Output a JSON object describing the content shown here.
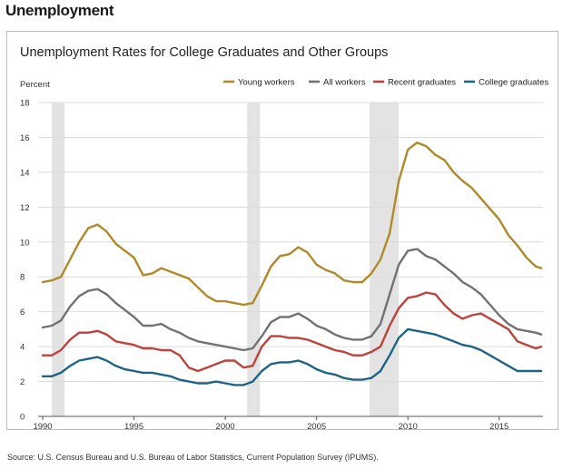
{
  "page": {
    "heading": "Unemployment",
    "source": "Source: U.S. Census Bureau and U.S. Bureau of Labor Statistics, Current Population Survey (IPUMS)."
  },
  "chart_data": {
    "type": "line",
    "title": "Unemployment Rates for College Graduates and Other Groups",
    "ylabel": "Percent",
    "xlabel": "",
    "xlim": [
      1989.75,
      2017.4
    ],
    "ylim": [
      0,
      18
    ],
    "x_ticks": [
      1990,
      1995,
      2000,
      2005,
      2010,
      2015
    ],
    "y_ticks": [
      0,
      2,
      4,
      6,
      8,
      10,
      12,
      14,
      16,
      18
    ],
    "grid": true,
    "legend": "top-right",
    "recessions": [
      [
        1990.5,
        1991.2
      ],
      [
        2001.2,
        2001.9
      ],
      [
        2007.9,
        2009.5
      ]
    ],
    "series": [
      {
        "name": "Young workers",
        "color": "#b08a28",
        "points": [
          [
            1990.0,
            7.7
          ],
          [
            1990.5,
            7.8
          ],
          [
            1991.0,
            8.0
          ],
          [
            1991.5,
            9.0
          ],
          [
            1992.0,
            10.0
          ],
          [
            1992.5,
            10.8
          ],
          [
            1993.0,
            11.0
          ],
          [
            1993.5,
            10.6
          ],
          [
            1994.0,
            9.9
          ],
          [
            1994.5,
            9.5
          ],
          [
            1995.0,
            9.1
          ],
          [
            1995.5,
            8.1
          ],
          [
            1996.0,
            8.2
          ],
          [
            1996.5,
            8.5
          ],
          [
            1997.0,
            8.3
          ],
          [
            1997.5,
            8.1
          ],
          [
            1998.0,
            7.9
          ],
          [
            1998.5,
            7.4
          ],
          [
            1999.0,
            6.9
          ],
          [
            1999.5,
            6.6
          ],
          [
            2000.0,
            6.6
          ],
          [
            2000.5,
            6.5
          ],
          [
            2001.0,
            6.4
          ],
          [
            2001.5,
            6.5
          ],
          [
            2002.0,
            7.5
          ],
          [
            2002.5,
            8.6
          ],
          [
            2003.0,
            9.2
          ],
          [
            2003.5,
            9.3
          ],
          [
            2004.0,
            9.7
          ],
          [
            2004.5,
            9.4
          ],
          [
            2005.0,
            8.7
          ],
          [
            2005.5,
            8.4
          ],
          [
            2006.0,
            8.2
          ],
          [
            2006.5,
            7.8
          ],
          [
            2007.0,
            7.7
          ],
          [
            2007.5,
            7.7
          ],
          [
            2008.0,
            8.2
          ],
          [
            2008.5,
            9.0
          ],
          [
            2009.0,
            10.5
          ],
          [
            2009.5,
            13.5
          ],
          [
            2010.0,
            15.3
          ],
          [
            2010.5,
            15.7
          ],
          [
            2011.0,
            15.5
          ],
          [
            2011.5,
            15.0
          ],
          [
            2012.0,
            14.7
          ],
          [
            2012.5,
            14.0
          ],
          [
            2013.0,
            13.5
          ],
          [
            2013.5,
            13.1
          ],
          [
            2014.0,
            12.5
          ],
          [
            2014.5,
            11.9
          ],
          [
            2015.0,
            11.3
          ],
          [
            2015.5,
            10.4
          ],
          [
            2016.0,
            9.8
          ],
          [
            2016.5,
            9.1
          ],
          [
            2017.0,
            8.6
          ],
          [
            2017.3,
            8.5
          ]
        ]
      },
      {
        "name": "All workers",
        "color": "#707275",
        "points": [
          [
            1990.0,
            5.1
          ],
          [
            1990.5,
            5.2
          ],
          [
            1991.0,
            5.5
          ],
          [
            1991.5,
            6.3
          ],
          [
            1992.0,
            6.9
          ],
          [
            1992.5,
            7.2
          ],
          [
            1993.0,
            7.3
          ],
          [
            1993.5,
            7.0
          ],
          [
            1994.0,
            6.5
          ],
          [
            1994.5,
            6.1
          ],
          [
            1995.0,
            5.7
          ],
          [
            1995.5,
            5.2
          ],
          [
            1996.0,
            5.2
          ],
          [
            1996.5,
            5.3
          ],
          [
            1997.0,
            5.0
          ],
          [
            1997.5,
            4.8
          ],
          [
            1998.0,
            4.5
          ],
          [
            1998.5,
            4.3
          ],
          [
            1999.0,
            4.2
          ],
          [
            1999.5,
            4.1
          ],
          [
            2000.0,
            4.0
          ],
          [
            2000.5,
            3.9
          ],
          [
            2001.0,
            3.8
          ],
          [
            2001.5,
            3.9
          ],
          [
            2002.0,
            4.6
          ],
          [
            2002.5,
            5.4
          ],
          [
            2003.0,
            5.7
          ],
          [
            2003.5,
            5.7
          ],
          [
            2004.0,
            5.9
          ],
          [
            2004.5,
            5.6
          ],
          [
            2005.0,
            5.2
          ],
          [
            2005.5,
            5.0
          ],
          [
            2006.0,
            4.7
          ],
          [
            2006.5,
            4.5
          ],
          [
            2007.0,
            4.4
          ],
          [
            2007.5,
            4.4
          ],
          [
            2008.0,
            4.6
          ],
          [
            2008.5,
            5.3
          ],
          [
            2009.0,
            7.0
          ],
          [
            2009.5,
            8.7
          ],
          [
            2010.0,
            9.5
          ],
          [
            2010.5,
            9.6
          ],
          [
            2011.0,
            9.2
          ],
          [
            2011.5,
            9.0
          ],
          [
            2012.0,
            8.6
          ],
          [
            2012.5,
            8.2
          ],
          [
            2013.0,
            7.7
          ],
          [
            2013.5,
            7.4
          ],
          [
            2014.0,
            7.0
          ],
          [
            2014.5,
            6.4
          ],
          [
            2015.0,
            5.8
          ],
          [
            2015.5,
            5.3
          ],
          [
            2016.0,
            5.0
          ],
          [
            2016.5,
            4.9
          ],
          [
            2017.0,
            4.8
          ],
          [
            2017.3,
            4.7
          ]
        ]
      },
      {
        "name": "Recent graduates",
        "color": "#c0423c",
        "points": [
          [
            1990.0,
            3.5
          ],
          [
            1990.5,
            3.5
          ],
          [
            1991.0,
            3.8
          ],
          [
            1991.5,
            4.4
          ],
          [
            1992.0,
            4.8
          ],
          [
            1992.5,
            4.8
          ],
          [
            1993.0,
            4.9
          ],
          [
            1993.5,
            4.7
          ],
          [
            1994.0,
            4.3
          ],
          [
            1994.5,
            4.2
          ],
          [
            1995.0,
            4.1
          ],
          [
            1995.5,
            3.9
          ],
          [
            1996.0,
            3.9
          ],
          [
            1996.5,
            3.8
          ],
          [
            1997.0,
            3.8
          ],
          [
            1997.5,
            3.5
          ],
          [
            1998.0,
            2.8
          ],
          [
            1998.5,
            2.6
          ],
          [
            1999.0,
            2.8
          ],
          [
            1999.5,
            3.0
          ],
          [
            2000.0,
            3.2
          ],
          [
            2000.5,
            3.2
          ],
          [
            2001.0,
            2.8
          ],
          [
            2001.5,
            2.9
          ],
          [
            2002.0,
            4.0
          ],
          [
            2002.5,
            4.6
          ],
          [
            2003.0,
            4.6
          ],
          [
            2003.5,
            4.5
          ],
          [
            2004.0,
            4.5
          ],
          [
            2004.5,
            4.4
          ],
          [
            2005.0,
            4.2
          ],
          [
            2005.5,
            4.0
          ],
          [
            2006.0,
            3.8
          ],
          [
            2006.5,
            3.7
          ],
          [
            2007.0,
            3.5
          ],
          [
            2007.5,
            3.5
          ],
          [
            2008.0,
            3.7
          ],
          [
            2008.5,
            4.0
          ],
          [
            2009.0,
            5.2
          ],
          [
            2009.5,
            6.2
          ],
          [
            2010.0,
            6.8
          ],
          [
            2010.5,
            6.9
          ],
          [
            2011.0,
            7.1
          ],
          [
            2011.5,
            7.0
          ],
          [
            2012.0,
            6.4
          ],
          [
            2012.5,
            5.9
          ],
          [
            2013.0,
            5.6
          ],
          [
            2013.5,
            5.8
          ],
          [
            2014.0,
            5.9
          ],
          [
            2014.5,
            5.6
          ],
          [
            2015.0,
            5.3
          ],
          [
            2015.5,
            5.0
          ],
          [
            2016.0,
            4.3
          ],
          [
            2016.5,
            4.1
          ],
          [
            2017.0,
            3.9
          ],
          [
            2017.3,
            4.0
          ]
        ]
      },
      {
        "name": "College graduates",
        "color": "#1e6484",
        "points": [
          [
            1990.0,
            2.3
          ],
          [
            1990.5,
            2.3
          ],
          [
            1991.0,
            2.5
          ],
          [
            1991.5,
            2.9
          ],
          [
            1992.0,
            3.2
          ],
          [
            1992.5,
            3.3
          ],
          [
            1993.0,
            3.4
          ],
          [
            1993.5,
            3.2
          ],
          [
            1994.0,
            2.9
          ],
          [
            1994.5,
            2.7
          ],
          [
            1995.0,
            2.6
          ],
          [
            1995.5,
            2.5
          ],
          [
            1996.0,
            2.5
          ],
          [
            1996.5,
            2.4
          ],
          [
            1997.0,
            2.3
          ],
          [
            1997.5,
            2.1
          ],
          [
            1998.0,
            2.0
          ],
          [
            1998.5,
            1.9
          ],
          [
            1999.0,
            1.9
          ],
          [
            1999.5,
            2.0
          ],
          [
            2000.0,
            1.9
          ],
          [
            2000.5,
            1.8
          ],
          [
            2001.0,
            1.8
          ],
          [
            2001.5,
            2.0
          ],
          [
            2002.0,
            2.6
          ],
          [
            2002.5,
            3.0
          ],
          [
            2003.0,
            3.1
          ],
          [
            2003.5,
            3.1
          ],
          [
            2004.0,
            3.2
          ],
          [
            2004.5,
            3.0
          ],
          [
            2005.0,
            2.7
          ],
          [
            2005.5,
            2.5
          ],
          [
            2006.0,
            2.4
          ],
          [
            2006.5,
            2.2
          ],
          [
            2007.0,
            2.1
          ],
          [
            2007.5,
            2.1
          ],
          [
            2008.0,
            2.2
          ],
          [
            2008.5,
            2.6
          ],
          [
            2009.0,
            3.5
          ],
          [
            2009.5,
            4.5
          ],
          [
            2010.0,
            5.0
          ],
          [
            2010.5,
            4.9
          ],
          [
            2011.0,
            4.8
          ],
          [
            2011.5,
            4.7
          ],
          [
            2012.0,
            4.5
          ],
          [
            2012.5,
            4.3
          ],
          [
            2013.0,
            4.1
          ],
          [
            2013.5,
            4.0
          ],
          [
            2014.0,
            3.8
          ],
          [
            2014.5,
            3.5
          ],
          [
            2015.0,
            3.2
          ],
          [
            2015.5,
            2.9
          ],
          [
            2016.0,
            2.6
          ],
          [
            2016.5,
            2.6
          ],
          [
            2017.0,
            2.6
          ],
          [
            2017.3,
            2.6
          ]
        ]
      }
    ]
  }
}
